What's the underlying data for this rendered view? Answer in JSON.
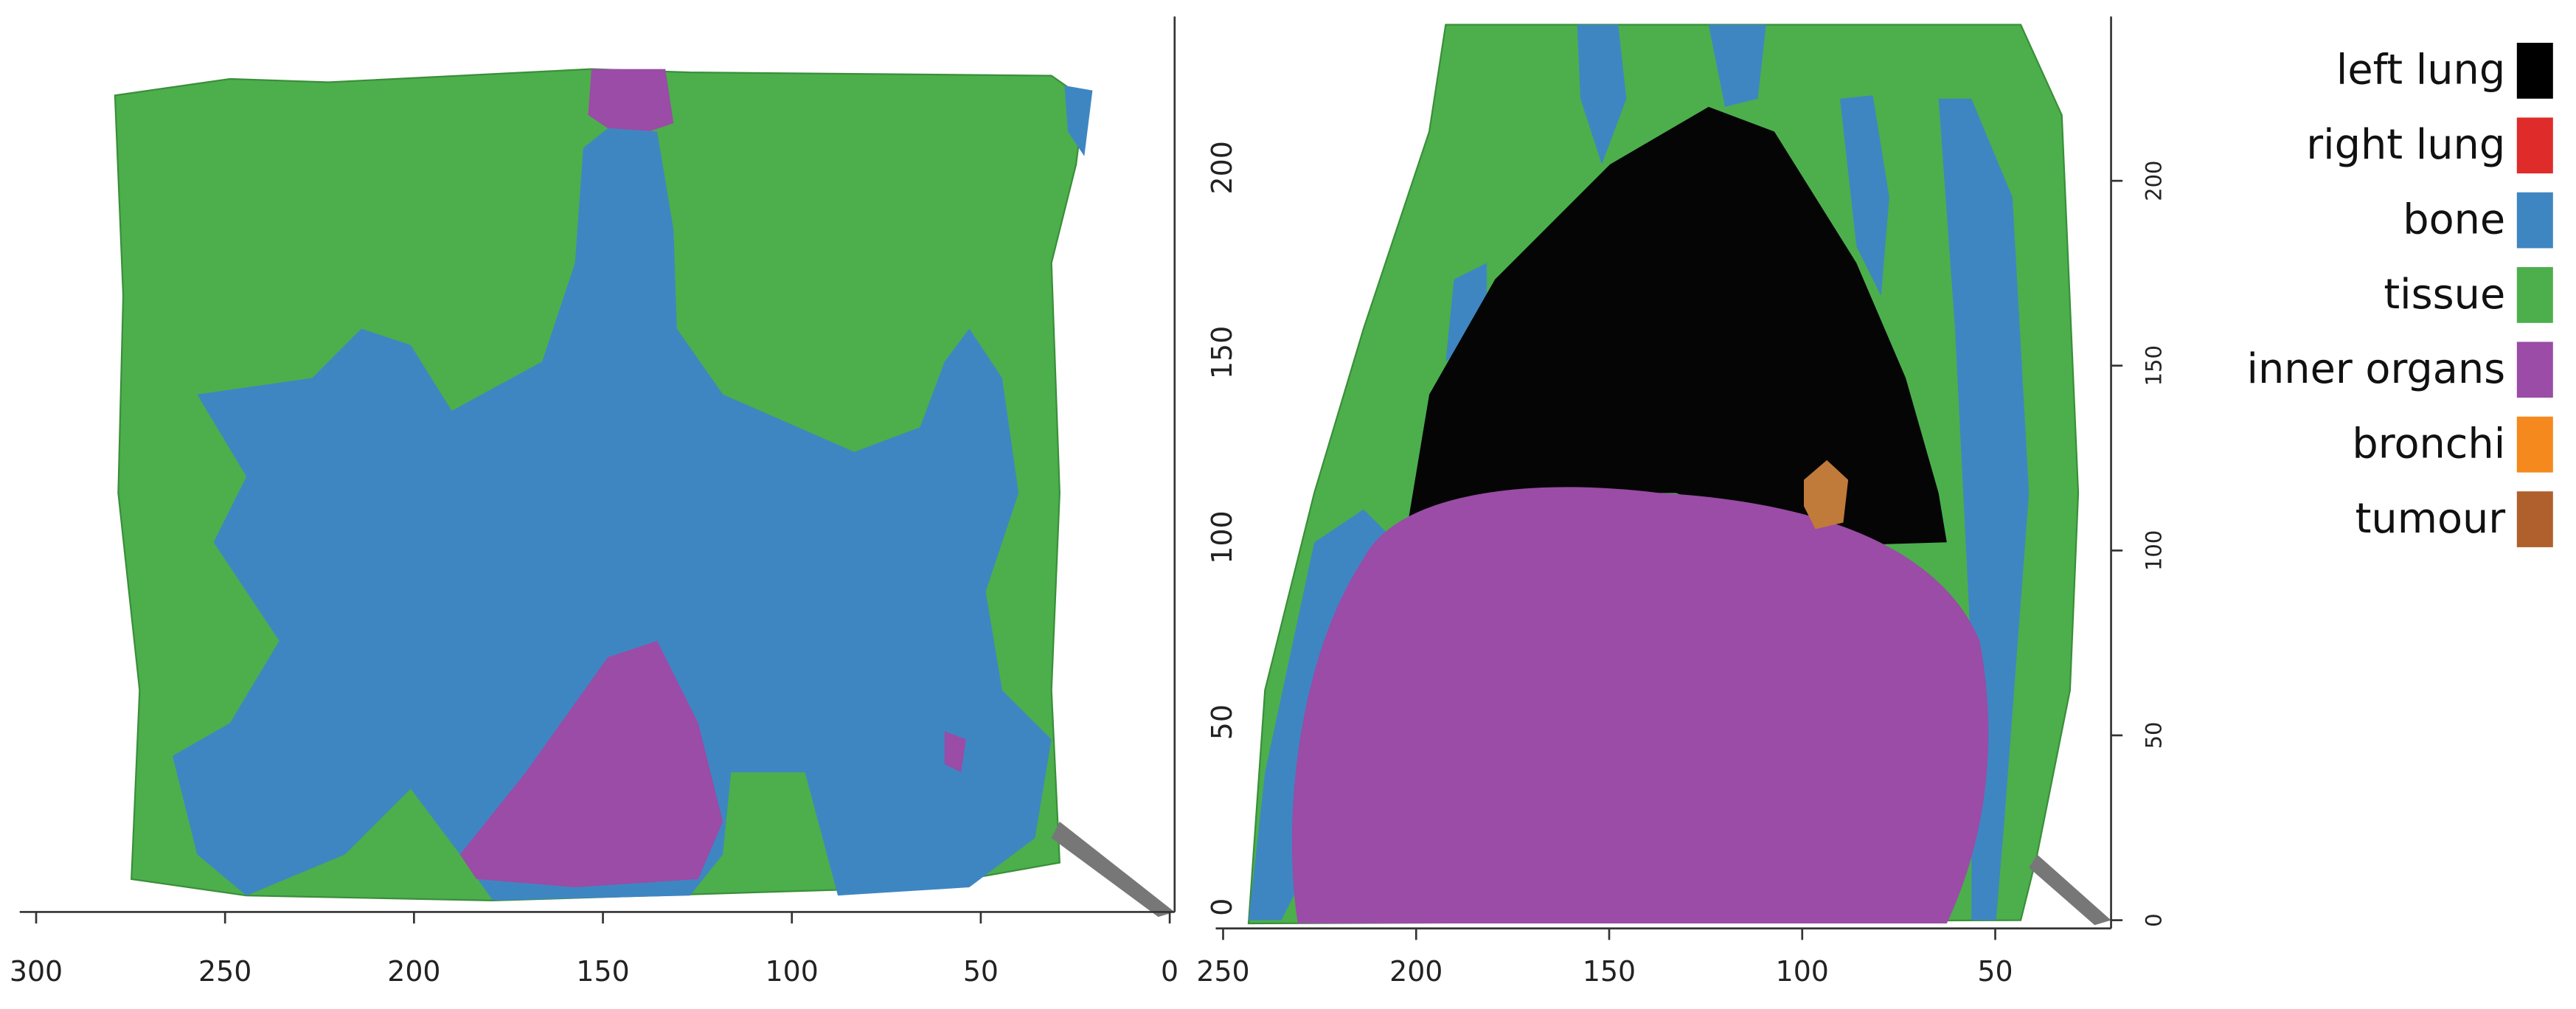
{
  "left_view": {
    "x_ticks": [
      300,
      250,
      200,
      150,
      100,
      50,
      0
    ]
  },
  "right_view": {
    "x_ticks": [
      250,
      200,
      150,
      100,
      50
    ],
    "left_y_ticks": [
      0,
      50,
      100,
      150,
      200
    ],
    "right_y_ticks": [
      0,
      50,
      100,
      150,
      200
    ]
  },
  "legend": [
    {
      "label": "left lung",
      "color": "#000000"
    },
    {
      "label": "right lung",
      "color": "#e02b2b"
    },
    {
      "label": "bone",
      "color": "#3e86c2"
    },
    {
      "label": "tissue",
      "color": "#4caf4c"
    },
    {
      "label": "inner organs",
      "color": "#9a4ca6"
    },
    {
      "label": "bronchi",
      "color": "#f5891e"
    },
    {
      "label": "tumour",
      "color": "#b0602c"
    }
  ]
}
